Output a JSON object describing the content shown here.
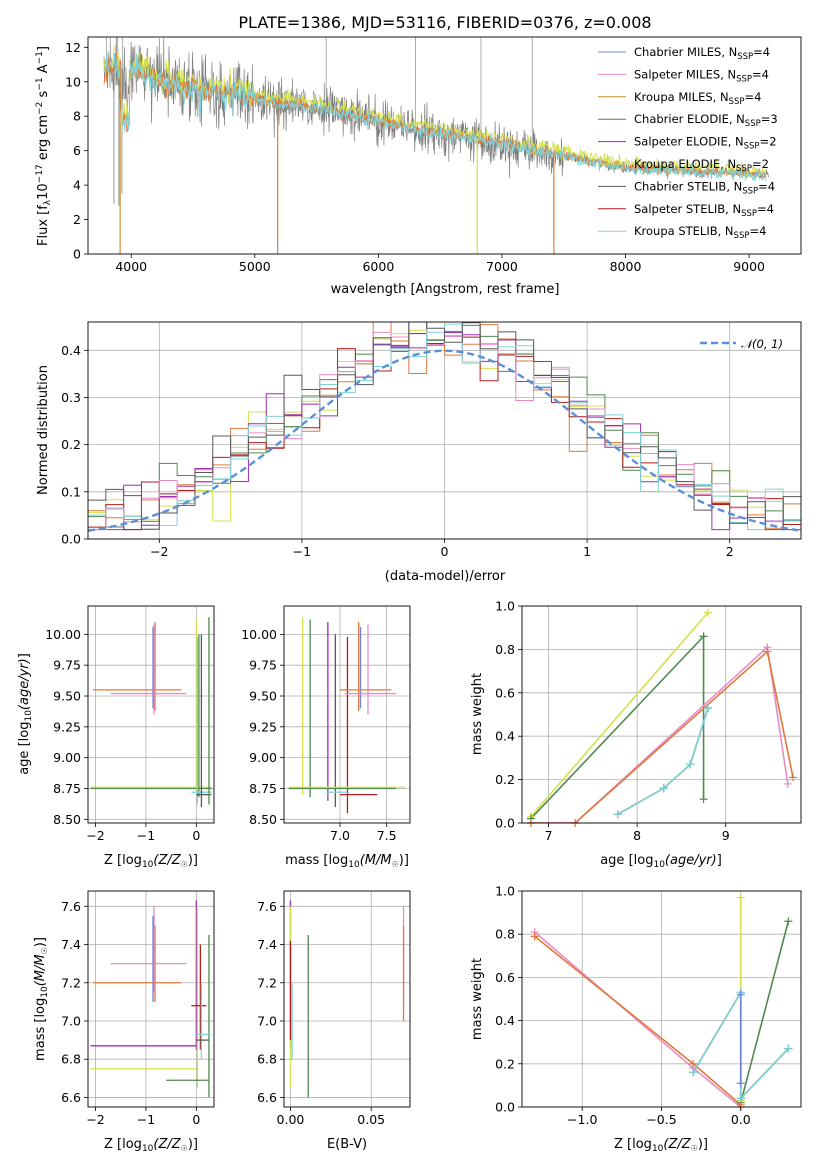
{
  "title": "PLATE=1386, MJD=53116, FIBERID=0376, z=0.008",
  "colors": {
    "Chabrier MILES": "#6f84dc",
    "Salpeter MILES": "#e98bc8",
    "Kroupa MILES": "#c8902e",
    "Chabrier ELODIE": "#4f8a4f",
    "Salpeter ELODIE": "#9b2fb5",
    "Kroupa ELODIE": "#d4e04a",
    "Chabrier STELIB": "#5a5a5a",
    "Salpeter STELIB": "#b21c1c",
    "Kroupa STELIB": "#7fd3d8",
    "data": "#808080",
    "orange_model": "#e07a3a",
    "normal": "#5b8fd8"
  },
  "chart_data": [
    {
      "type": "line",
      "name": "spectrum",
      "title": "PLATE=1386, MJD=53116, FIBERID=0376, z=0.008",
      "xlabel": "wavelength [Angstrom, rest frame]",
      "ylabel": "Flux [f_λ10^-17 erg cm^-2 s^-1 A^-1]",
      "xlim": [
        3650,
        9420
      ],
      "ylim": [
        0,
        12.6
      ],
      "xticks": [
        "4000",
        "5000",
        "6000",
        "7000",
        "8000",
        "9000"
      ],
      "yticks": [
        "0",
        "2",
        "4",
        "6",
        "8",
        "10",
        "12"
      ],
      "legend_position": "top-right",
      "legend": [
        {
          "label": "Chabrier MILES, N",
          "sub": "SSP",
          "suffix": "=4",
          "key": "Chabrier MILES"
        },
        {
          "label": "Salpeter MILES, N",
          "sub": "SSP",
          "suffix": "=4",
          "key": "Salpeter MILES"
        },
        {
          "label": "Kroupa MILES, N",
          "sub": "SSP",
          "suffix": "=4",
          "key": "Kroupa MILES"
        },
        {
          "label": "Chabrier ELODIE, N",
          "sub": "SSP",
          "suffix": "=3",
          "key": "Chabrier ELODIE"
        },
        {
          "label": "Salpeter ELODIE, N",
          "sub": "SSP",
          "suffix": "=2",
          "key": "Salpeter ELODIE"
        },
        {
          "label": "Kroupa ELODIE, N",
          "sub": "SSP",
          "suffix": "=2",
          "key": "Kroupa ELODIE"
        },
        {
          "label": "Chabrier STELIB, N",
          "sub": "SSP",
          "suffix": "=4",
          "key": "Chabrier STELIB"
        },
        {
          "label": "Salpeter STELIB, N",
          "sub": "SSP",
          "suffix": "=4",
          "key": "Salpeter STELIB"
        },
        {
          "label": "Kroupa STELIB, N",
          "sub": "SSP",
          "suffix": "=4",
          "key": "Kroupa STELIB"
        }
      ],
      "continuum": [
        [
          3780,
          10.6
        ],
        [
          3850,
          10.9
        ],
        [
          3950,
          10.8
        ],
        [
          4050,
          10.6
        ],
        [
          4150,
          10.3
        ],
        [
          4300,
          9.9
        ],
        [
          4500,
          9.6
        ],
        [
          4700,
          9.4
        ],
        [
          4900,
          9.2
        ],
        [
          5100,
          8.9
        ],
        [
          5300,
          8.7
        ],
        [
          5500,
          8.5
        ],
        [
          5700,
          8.2
        ],
        [
          5900,
          7.9
        ],
        [
          6100,
          7.6
        ],
        [
          6300,
          7.3
        ],
        [
          6500,
          7.0
        ],
        [
          6700,
          6.8
        ],
        [
          6900,
          6.6
        ],
        [
          7100,
          6.3
        ],
        [
          7300,
          6.0
        ],
        [
          7500,
          5.7
        ],
        [
          7700,
          5.4
        ],
        [
          8000,
          5.0
        ],
        [
          8300,
          4.9
        ],
        [
          8600,
          4.8
        ],
        [
          8900,
          4.7
        ],
        [
          9150,
          4.6
        ]
      ]
    },
    {
      "type": "step",
      "name": "residual histogram",
      "xlabel": "(data-model)/error",
      "ylabel": "Normed distribution",
      "xlim": [
        -2.5,
        2.5
      ],
      "ylim": [
        0,
        0.46
      ],
      "xticks": [
        "−2",
        "−1",
        "0",
        "1",
        "2"
      ],
      "yticks": [
        "0.0",
        "0.1",
        "0.2",
        "0.3",
        "0.4"
      ],
      "legend": [
        {
          "label": "𝒩(0, 1)",
          "style": "dashed"
        }
      ],
      "normal_curve": {
        "mean": 0,
        "sigma": 1
      }
    },
    {
      "type": "scatter",
      "name": "age vs Z",
      "xlabel": "Z [log10(Z/Z☉)]",
      "ylabel": "age [log10(age/yr)]",
      "xlim": [
        -2.15,
        0.35
      ],
      "ylim": [
        8.47,
        10.23
      ],
      "xticks": [
        "−2",
        "−1",
        "0"
      ],
      "yticks": [
        "8.50",
        "8.75",
        "9.00",
        "9.25",
        "9.50",
        "9.75",
        "10.00"
      ]
    },
    {
      "type": "scatter",
      "name": "age vs mass",
      "xlabel": "mass [log10(M/M☉)]",
      "ylabel": "",
      "xlim": [
        6.4,
        7.75
      ],
      "ylim": [
        8.47,
        10.23
      ],
      "xticks": [
        "7.0",
        "7.5"
      ],
      "yticks": [
        "8.50",
        "8.75",
        "9.00",
        "9.25",
        "9.50",
        "9.75",
        "10.00"
      ]
    },
    {
      "type": "line",
      "name": "mass weight vs age",
      "xlabel": "age [log10(age/yr)]",
      "ylabel": "mass weight",
      "xlim": [
        6.7,
        9.85
      ],
      "ylim": [
        0,
        1.0
      ],
      "xticks": [
        "7",
        "8",
        "9"
      ],
      "yticks": [
        "0.0",
        "0.2",
        "0.4",
        "0.6",
        "0.8",
        "1.0"
      ]
    },
    {
      "type": "scatter",
      "name": "mass vs Z",
      "xlabel": "Z [log10(Z/Z☉)]",
      "ylabel": "mass [log10(M/M☉)]",
      "xlim": [
        -2.15,
        0.35
      ],
      "ylim": [
        6.55,
        7.68
      ],
      "xticks": [
        "−2",
        "−1",
        "0"
      ],
      "yticks": [
        "6.6",
        "6.8",
        "7.0",
        "7.2",
        "7.4",
        "7.6"
      ]
    },
    {
      "type": "scatter",
      "name": "mass vs E(B-V)",
      "xlabel": "E(B-V)",
      "ylabel": "",
      "xlim": [
        -0.004,
        0.074
      ],
      "ylim": [
        6.55,
        7.68
      ],
      "xticks": [
        "0.00",
        "0.05"
      ],
      "yticks": [
        "6.6",
        "6.8",
        "7.0",
        "7.2",
        "7.4",
        "7.6"
      ]
    },
    {
      "type": "line",
      "name": "mass weight vs Z",
      "xlabel": "Z [log10(Z/Z☉)]",
      "ylabel": "mass weight",
      "xlim": [
        -1.38,
        0.38
      ],
      "ylim": [
        0,
        1.0
      ],
      "xticks": [
        "−1.0",
        "−0.5",
        "0.0"
      ],
      "yticks": [
        "0.0",
        "0.2",
        "0.4",
        "0.6",
        "0.8",
        "1.0"
      ]
    }
  ]
}
